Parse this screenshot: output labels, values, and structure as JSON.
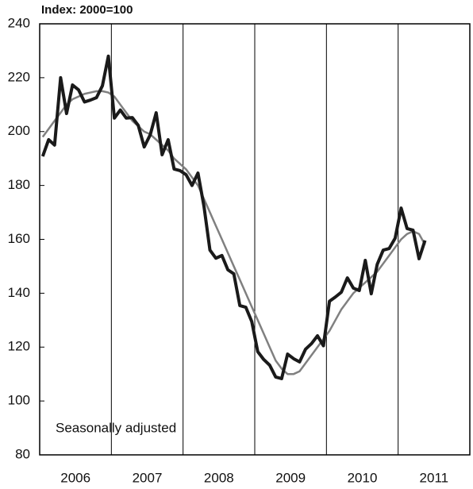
{
  "chart_data": {
    "type": "line",
    "title": "Index:  2000=100",
    "annotation": "Seasonally adjusted",
    "ylim": [
      80,
      240
    ],
    "yticks": [
      80,
      100,
      120,
      140,
      160,
      180,
      200,
      220,
      240
    ],
    "xlim": [
      2006,
      2012
    ],
    "xticks": [
      {
        "value": 2006.5,
        "label": "2006"
      },
      {
        "value": 2007.5,
        "label": "2007"
      },
      {
        "value": 2008.5,
        "label": "2008"
      },
      {
        "value": 2009.5,
        "label": "2009"
      },
      {
        "value": 2010.5,
        "label": "2010"
      },
      {
        "value": 2011.5,
        "label": "2011"
      }
    ],
    "xgrid": [
      2007,
      2008,
      2009,
      2010,
      2011
    ],
    "x": [
      2006.042,
      2006.125,
      2006.208,
      2006.292,
      2006.375,
      2006.458,
      2006.542,
      2006.625,
      2006.708,
      2006.792,
      2006.875,
      2006.958,
      2007.042,
      2007.125,
      2007.208,
      2007.292,
      2007.375,
      2007.458,
      2007.542,
      2007.625,
      2007.708,
      2007.792,
      2007.875,
      2007.958,
      2008.042,
      2008.125,
      2008.208,
      2008.292,
      2008.375,
      2008.458,
      2008.542,
      2008.625,
      2008.708,
      2008.792,
      2008.875,
      2008.958,
      2009.042,
      2009.125,
      2009.208,
      2009.292,
      2009.375,
      2009.458,
      2009.542,
      2009.625,
      2009.708,
      2009.792,
      2009.875,
      2009.958,
      2010.042,
      2010.125,
      2010.208,
      2010.292,
      2010.375,
      2010.458,
      2010.542,
      2010.625,
      2010.708,
      2010.792,
      2010.875,
      2010.958,
      2011.042,
      2011.125,
      2011.208,
      2011.292,
      2011.375
    ],
    "series": [
      {
        "color": "#808080",
        "width": 2.5,
        "values": [
          198,
          201,
          204,
          207,
          210,
          212,
          213,
          214,
          214.5,
          215,
          215,
          214.5,
          213,
          210,
          207,
          204,
          202,
          200,
          199,
          197,
          195,
          193,
          190,
          188,
          186,
          183,
          180,
          175,
          170,
          165,
          160,
          155,
          150,
          145,
          140,
          135,
          130,
          125,
          120,
          115,
          112,
          110,
          110,
          111,
          114,
          117,
          120,
          123,
          126,
          130,
          134,
          137,
          140,
          142,
          144,
          146,
          148,
          151,
          154,
          157,
          160,
          162,
          163,
          162,
          158
        ]
      },
      {
        "color": "#1a1a1a",
        "width": 4,
        "values": [
          190.8,
          197,
          195,
          220,
          206.7,
          217.3,
          215.5,
          211,
          211.7,
          212.6,
          217,
          228,
          205,
          208,
          205,
          205.2,
          202.3,
          194.3,
          198.8,
          207,
          191.4,
          197,
          186.1,
          185.5,
          184,
          180,
          184.6,
          172.2,
          156,
          153,
          154,
          148.7,
          147.2,
          135.4,
          134.8,
          129.5,
          118.3,
          115.4,
          113.3,
          108.9,
          108.3,
          117.4,
          115.7,
          114.5,
          119.2,
          121.3,
          124.2,
          120.5,
          137,
          138.6,
          140.4,
          145.7,
          141.9,
          141,
          152.2,
          139.8,
          150.7,
          156,
          156.6,
          160.4,
          171.6,
          164,
          163.4,
          152.8,
          159.6
        ]
      }
    ]
  }
}
